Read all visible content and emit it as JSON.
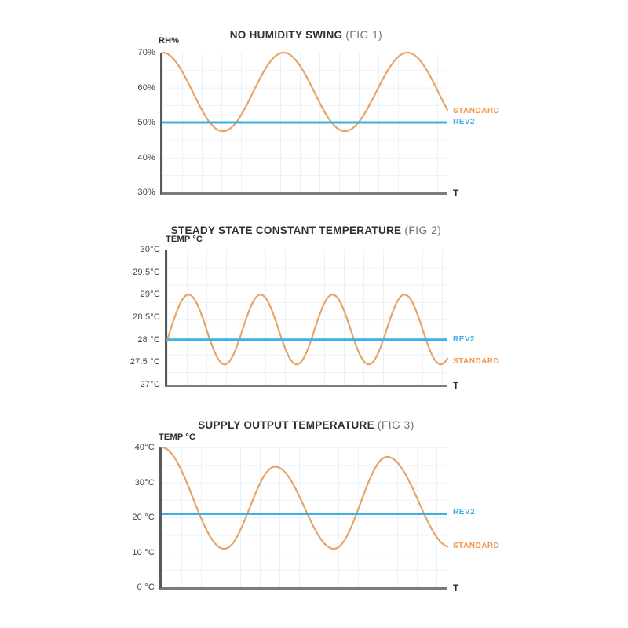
{
  "page": {
    "background": "#ffffff"
  },
  "colors": {
    "standard_curve": "#e5a468",
    "standard_label": "#f0994f",
    "rev2": "#3fb0e2",
    "y_axis": "#58595b",
    "x_axis": "#7b7c7f",
    "grid": "#eaf2f9",
    "title": "#2f2f32",
    "fig_note": "#6d6e71",
    "tick_text": "#414042"
  },
  "chart_data": [
    {
      "type": "line",
      "title": "NO HUMIDITY SWING",
      "fig_note": "(FIG 1)",
      "ylabel": "RH%",
      "xlabel": "T",
      "ylim": [
        30,
        70
      ],
      "grid": true,
      "legend_position": "right",
      "yticks": [
        {
          "label": "70%",
          "value": 70
        },
        {
          "label": "60%",
          "value": 60
        },
        {
          "label": "50%",
          "value": 50
        },
        {
          "label": "40%",
          "value": 40
        },
        {
          "label": "30%",
          "value": 30
        }
      ],
      "series": [
        {
          "name": "STANDARD",
          "kind": "wave",
          "color": "#e5a468",
          "extrema": [
            [
              0,
              70
            ],
            [
              0.212,
              47.5
            ],
            [
              0.425,
              70
            ],
            [
              0.64,
              47.5
            ],
            [
              0.86,
              70
            ],
            [
              1.075,
              47.5
            ]
          ]
        },
        {
          "name": "REV2",
          "kind": "hline",
          "color": "#3fb0e2",
          "value": 50
        }
      ],
      "legend": [
        {
          "label": "STANDARD",
          "color": "#f0994f"
        },
        {
          "label": "REV2",
          "color": "#3fb0e2"
        }
      ]
    },
    {
      "type": "line",
      "title": "STEADY STATE CONSTANT TEMPERATURE",
      "fig_note": "(FIG 2)",
      "ylabel": "TEMP °C",
      "xlabel": "T",
      "ylim": [
        27,
        30
      ],
      "grid": true,
      "legend_position": "right",
      "yticks": [
        {
          "label": "30°C",
          "value": 30
        },
        {
          "label": "29.5°C",
          "value": 29.5
        },
        {
          "label": "29°C",
          "value": 29
        },
        {
          "label": "28.5°C",
          "value": 28.5
        },
        {
          "label": "28 °C",
          "value": 28
        },
        {
          "label": "27.5 °C",
          "value": 27.5
        },
        {
          "label": "27°C",
          "value": 27
        }
      ],
      "series": [
        {
          "name": "STANDARD",
          "kind": "wave",
          "color": "#e5a468",
          "extrema": [
            [
              -0.052,
              27.45
            ],
            [
              0.076,
              29
            ],
            [
              0.205,
              27.45
            ],
            [
              0.333,
              29
            ],
            [
              0.462,
              27.45
            ],
            [
              0.59,
              29
            ],
            [
              0.719,
              27.45
            ],
            [
              0.847,
              29
            ],
            [
              0.976,
              27.45
            ],
            [
              1.104,
              29
            ]
          ]
        },
        {
          "name": "REV2",
          "kind": "hline",
          "color": "#3fb0e2",
          "value": 28
        }
      ],
      "legend": [
        {
          "label": "REV2",
          "color": "#3fb0e2"
        },
        {
          "label": "STANDARD",
          "color": "#f0994f"
        }
      ]
    },
    {
      "type": "line",
      "title": "SUPPLY OUTPUT TEMPERATURE",
      "fig_note": "(FIG 3)",
      "ylabel": "TEMP °C",
      "xlabel": "T",
      "ylim": [
        0,
        40
      ],
      "grid": true,
      "legend_position": "right",
      "yticks": [
        {
          "label": "40°C",
          "value": 40
        },
        {
          "label": "30°C",
          "value": 30
        },
        {
          "label": "20 °C",
          "value": 20
        },
        {
          "label": "10 °C",
          "value": 10
        },
        {
          "label": "0 °C",
          "value": 0
        }
      ],
      "series": [
        {
          "name": "STANDARD",
          "kind": "wave",
          "color": "#e5a468",
          "extrema": [
            [
              0,
              40
            ],
            [
              0.219,
              11
            ],
            [
              0.397,
              34.5
            ],
            [
              0.603,
              11
            ],
            [
              0.789,
              37.3
            ],
            [
              1.01,
              11.5
            ]
          ]
        },
        {
          "name": "REV2",
          "kind": "hline",
          "color": "#3fb0e2",
          "value": 21
        }
      ],
      "legend": [
        {
          "label": "REV2",
          "color": "#3fb0e2"
        },
        {
          "label": "STANDARD",
          "color": "#f0994f"
        }
      ]
    }
  ]
}
